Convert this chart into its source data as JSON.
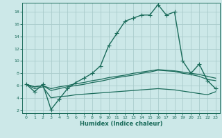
{
  "xlabel": "Humidex (Indice chaleur)",
  "bg_color": "#cce8e8",
  "grid_color": "#aacccc",
  "line_color": "#1a6b5a",
  "xlim": [
    -0.5,
    23.5
  ],
  "ylim": [
    1.5,
    19.5
  ],
  "yticks": [
    2,
    4,
    6,
    8,
    10,
    12,
    14,
    16,
    18
  ],
  "xticks": [
    0,
    1,
    2,
    3,
    4,
    5,
    6,
    7,
    8,
    9,
    10,
    11,
    12,
    13,
    14,
    15,
    16,
    17,
    18,
    19,
    20,
    21,
    22,
    23
  ],
  "series": [
    {
      "x": [
        0,
        1,
        2,
        3,
        4,
        5,
        6,
        7,
        8,
        9,
        10,
        11,
        12,
        13,
        14,
        15,
        16,
        17,
        18,
        19,
        20,
        21,
        22,
        23
      ],
      "y": [
        6.2,
        5.0,
        6.2,
        2.1,
        3.8,
        5.5,
        6.5,
        7.2,
        8.0,
        9.2,
        12.5,
        14.5,
        16.5,
        17.0,
        17.5,
        17.5,
        19.2,
        17.5,
        18.0,
        10.0,
        8.0,
        9.5,
        6.8,
        5.5
      ],
      "marker": "+",
      "markersize": 4,
      "linewidth": 1.0
    },
    {
      "x": [
        0,
        1,
        2,
        3,
        4,
        5,
        6,
        7,
        8,
        9,
        10,
        11,
        12,
        13,
        14,
        15,
        16,
        17,
        18,
        19,
        20,
        21,
        22,
        23
      ],
      "y": [
        6.2,
        5.8,
        6.0,
        5.5,
        5.8,
        6.0,
        6.3,
        6.5,
        6.8,
        7.0,
        7.3,
        7.5,
        7.7,
        8.0,
        8.2,
        8.4,
        8.6,
        8.5,
        8.4,
        8.2,
        8.0,
        7.8,
        7.5,
        7.2
      ],
      "marker": null,
      "linewidth": 0.9
    },
    {
      "x": [
        0,
        1,
        2,
        3,
        4,
        5,
        6,
        7,
        8,
        9,
        10,
        11,
        12,
        13,
        14,
        15,
        16,
        17,
        18,
        19,
        20,
        21,
        22,
        23
      ],
      "y": [
        6.2,
        5.8,
        6.0,
        5.2,
        5.5,
        5.8,
        6.0,
        6.2,
        6.5,
        6.7,
        7.0,
        7.3,
        7.5,
        7.7,
        8.0,
        8.2,
        8.5,
        8.4,
        8.3,
        8.0,
        7.8,
        7.5,
        7.0,
        6.8
      ],
      "marker": null,
      "linewidth": 0.9
    },
    {
      "x": [
        0,
        1,
        2,
        3,
        4,
        5,
        6,
        7,
        8,
        9,
        10,
        11,
        12,
        13,
        14,
        15,
        16,
        17,
        18,
        19,
        20,
        21,
        22,
        23
      ],
      "y": [
        6.2,
        5.5,
        5.8,
        4.0,
        4.2,
        4.3,
        4.5,
        4.6,
        4.7,
        4.8,
        4.9,
        5.0,
        5.1,
        5.2,
        5.3,
        5.4,
        5.5,
        5.4,
        5.3,
        5.1,
        4.9,
        4.7,
        4.5,
        5.0
      ],
      "marker": null,
      "linewidth": 0.9
    }
  ]
}
